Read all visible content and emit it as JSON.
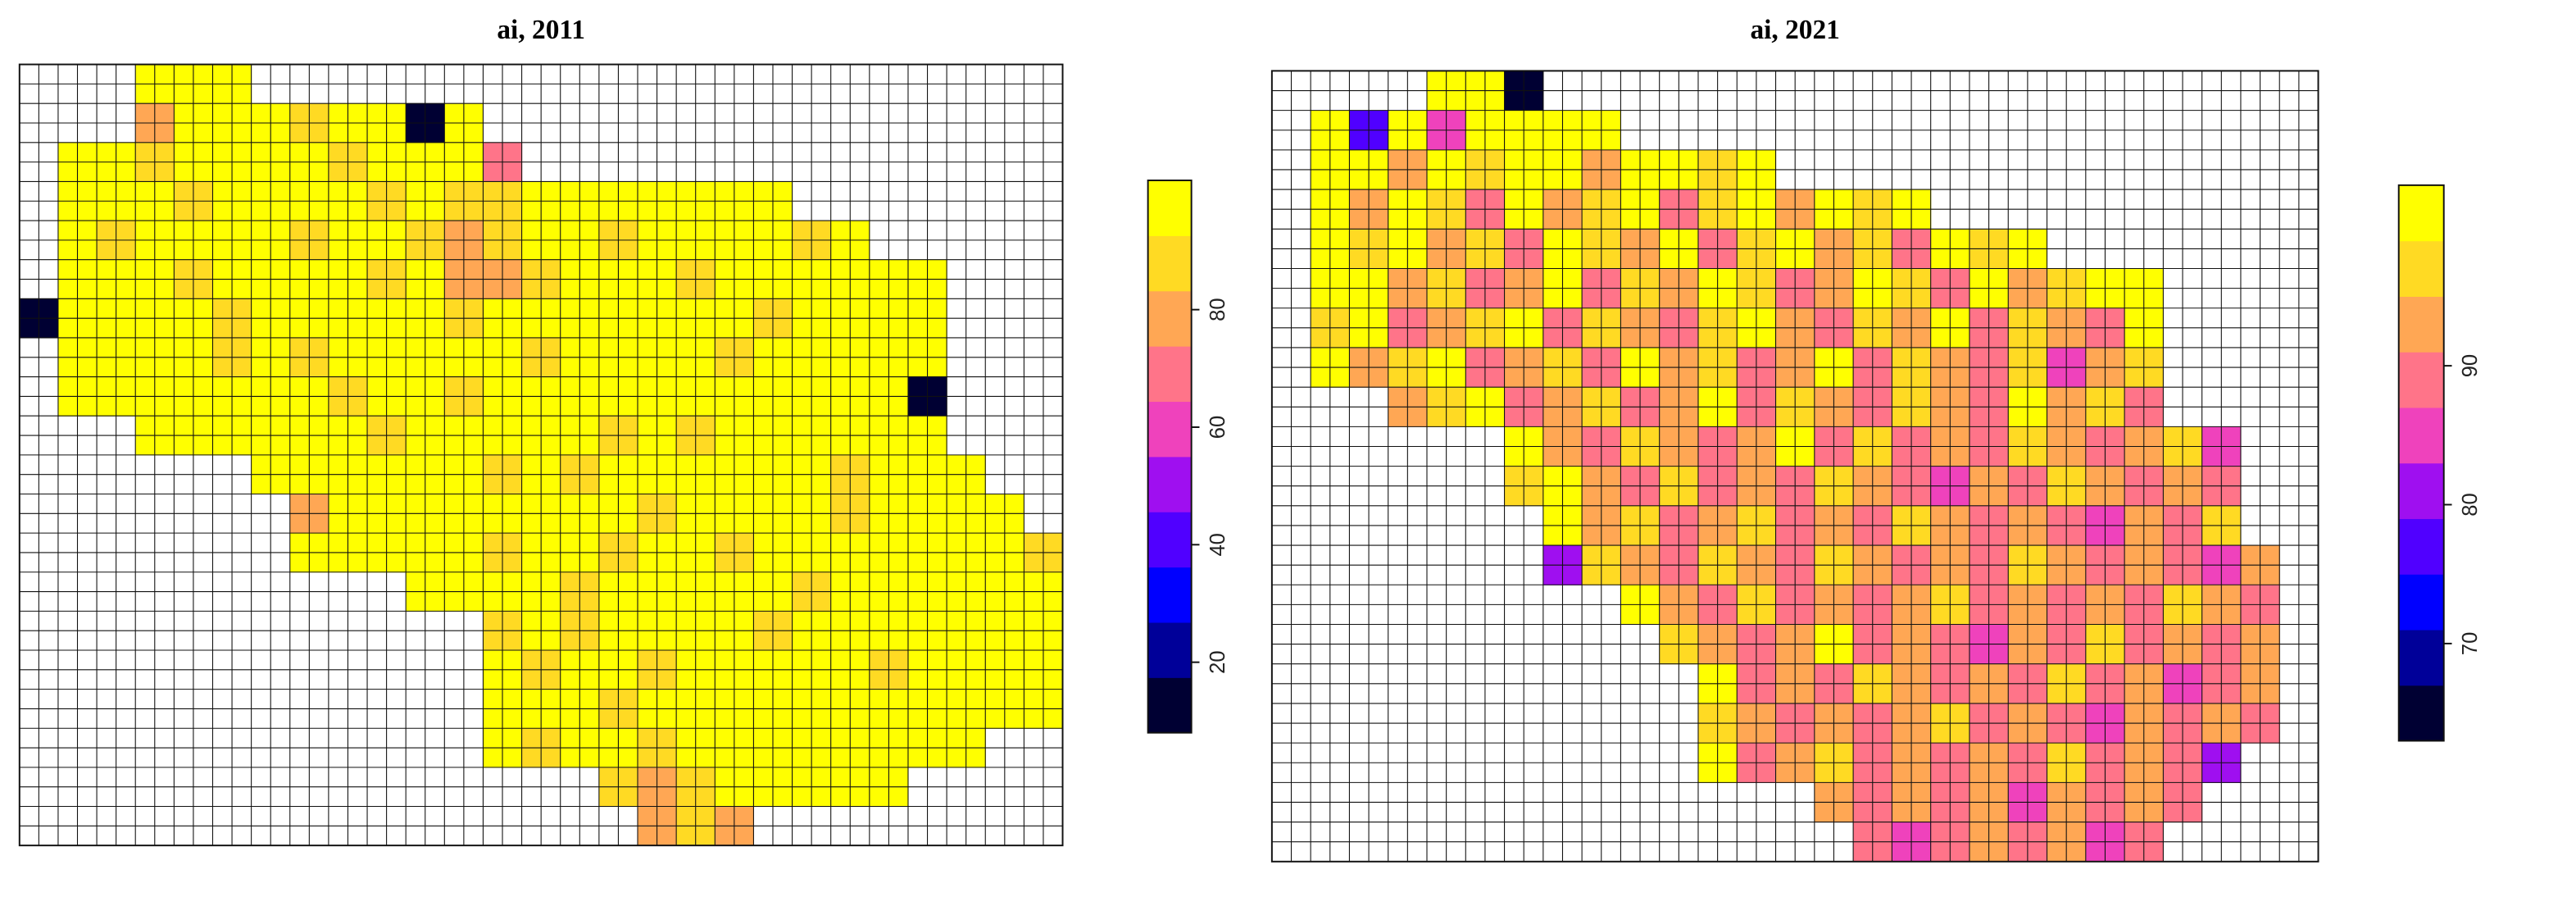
{
  "chart_data": [
    {
      "type": "raster",
      "title": "ai, 2011",
      "zlim": [
        8,
        102
      ],
      "zticks": [
        20,
        40,
        60,
        80
      ],
      "colors": [
        "#000033",
        "#000099",
        "#0000ff",
        "#5000ff",
        "#9f0ff0",
        "#ef42bc",
        "#ff7489",
        "#ffa754",
        "#ffda23",
        "#ffff00"
      ],
      "values": [
        [
          null,
          null,
          null,
          97,
          97,
          97,
          null,
          null,
          null,
          null,
          null,
          null,
          null,
          null,
          null,
          null,
          null,
          null,
          null,
          null,
          null,
          null,
          null,
          null,
          null,
          null,
          null
        ],
        [
          null,
          null,
          null,
          80,
          97,
          97,
          97,
          89,
          97,
          97,
          10,
          97,
          null,
          null,
          null,
          null,
          null,
          null,
          null,
          null,
          null,
          null,
          null,
          null,
          null,
          null,
          null
        ],
        [
          null,
          97,
          97,
          89,
          97,
          97,
          97,
          97,
          89,
          97,
          97,
          97,
          65,
          null,
          null,
          null,
          null,
          null,
          null,
          null,
          null,
          null,
          null,
          null,
          null,
          null,
          null
        ],
        [
          null,
          97,
          97,
          97,
          89,
          97,
          97,
          97,
          97,
          89,
          97,
          89,
          89,
          97,
          97,
          97,
          97,
          97,
          97,
          97,
          null,
          null,
          null,
          null,
          null,
          null,
          null
        ],
        [
          null,
          97,
          89,
          97,
          97,
          97,
          97,
          89,
          97,
          97,
          89,
          80,
          89,
          97,
          97,
          89,
          97,
          97,
          97,
          97,
          89,
          97,
          null,
          null,
          null,
          null,
          null
        ],
        [
          null,
          97,
          97,
          97,
          89,
          97,
          97,
          97,
          97,
          89,
          97,
          80,
          80,
          89,
          97,
          97,
          97,
          89,
          97,
          97,
          97,
          97,
          97,
          97,
          null,
          null,
          null
        ],
        [
          10,
          97,
          97,
          97,
          97,
          89,
          97,
          97,
          97,
          97,
          97,
          89,
          97,
          97,
          97,
          97,
          97,
          97,
          97,
          89,
          97,
          97,
          97,
          97,
          null,
          null,
          null
        ],
        [
          null,
          97,
          97,
          97,
          97,
          89,
          97,
          89,
          97,
          97,
          97,
          97,
          97,
          89,
          97,
          97,
          97,
          97,
          89,
          97,
          97,
          97,
          97,
          97,
          null,
          null,
          null
        ],
        [
          null,
          97,
          97,
          97,
          97,
          97,
          97,
          97,
          89,
          97,
          97,
          89,
          97,
          97,
          97,
          97,
          97,
          97,
          97,
          97,
          97,
          97,
          97,
          10,
          null,
          null,
          null
        ],
        [
          null,
          null,
          null,
          97,
          97,
          97,
          97,
          97,
          97,
          89,
          97,
          97,
          97,
          97,
          97,
          89,
          97,
          89,
          97,
          97,
          97,
          97,
          97,
          97,
          null,
          null,
          null
        ],
        [
          null,
          null,
          null,
          null,
          null,
          null,
          97,
          97,
          97,
          97,
          97,
          97,
          89,
          97,
          89,
          97,
          97,
          97,
          97,
          97,
          97,
          89,
          97,
          97,
          97,
          null,
          null
        ],
        [
          null,
          null,
          null,
          null,
          null,
          null,
          null,
          80,
          97,
          97,
          97,
          97,
          97,
          97,
          97,
          97,
          89,
          97,
          97,
          97,
          97,
          89,
          97,
          97,
          97,
          97,
          null
        ],
        [
          null,
          null,
          null,
          null,
          null,
          null,
          null,
          97,
          97,
          97,
          97,
          97,
          89,
          97,
          97,
          89,
          97,
          97,
          89,
          97,
          97,
          97,
          97,
          97,
          97,
          97,
          89
        ],
        [
          null,
          null,
          null,
          null,
          null,
          null,
          null,
          null,
          null,
          null,
          97,
          97,
          97,
          97,
          89,
          97,
          97,
          97,
          97,
          97,
          89,
          97,
          97,
          97,
          97,
          97,
          97
        ],
        [
          null,
          null,
          null,
          null,
          null,
          null,
          null,
          null,
          null,
          null,
          null,
          null,
          89,
          97,
          89,
          97,
          97,
          97,
          97,
          89,
          97,
          97,
          97,
          97,
          97,
          97,
          97
        ],
        [
          null,
          null,
          null,
          null,
          null,
          null,
          null,
          null,
          null,
          null,
          null,
          null,
          97,
          89,
          97,
          97,
          89,
          97,
          97,
          97,
          97,
          97,
          89,
          97,
          97,
          97,
          97
        ],
        [
          null,
          null,
          null,
          null,
          null,
          null,
          null,
          null,
          null,
          null,
          null,
          null,
          97,
          97,
          97,
          89,
          97,
          97,
          97,
          97,
          97,
          97,
          97,
          97,
          97,
          97,
          97
        ],
        [
          null,
          null,
          null,
          null,
          null,
          null,
          null,
          null,
          null,
          null,
          null,
          null,
          97,
          89,
          97,
          97,
          89,
          97,
          97,
          97,
          97,
          97,
          97,
          97,
          97,
          null,
          null
        ],
        [
          null,
          null,
          null,
          null,
          null,
          null,
          null,
          null,
          null,
          null,
          null,
          null,
          null,
          null,
          null,
          89,
          80,
          89,
          97,
          97,
          97,
          97,
          97,
          null,
          null,
          null,
          null
        ],
        [
          null,
          null,
          null,
          null,
          null,
          null,
          null,
          null,
          null,
          null,
          null,
          null,
          null,
          null,
          null,
          null,
          80,
          89,
          80,
          null,
          null,
          null,
          null,
          null,
          null,
          null,
          null
        ]
      ]
    },
    {
      "type": "raster",
      "title": "ai, 2021",
      "zlim": [
        63,
        103
      ],
      "zticks": [
        70,
        80,
        90
      ],
      "colors": [
        "#000033",
        "#000099",
        "#0000ff",
        "#5000ff",
        "#9f0ff0",
        "#ef42bc",
        "#ff7489",
        "#ffa754",
        "#ffda23",
        "#ffff00"
      ],
      "values": [
        [
          null,
          null,
          null,
          null,
          100,
          100,
          64,
          null,
          null,
          null,
          null,
          null,
          null,
          null,
          null,
          null,
          null,
          null,
          null,
          null,
          null,
          null,
          null,
          null,
          null,
          null,
          null
        ],
        [
          null,
          100,
          77,
          100,
          85,
          100,
          100,
          100,
          100,
          null,
          null,
          null,
          null,
          null,
          null,
          null,
          null,
          null,
          null,
          null,
          null,
          null,
          null,
          null,
          null,
          null,
          null
        ],
        [
          null,
          100,
          100,
          93,
          100,
          97,
          100,
          100,
          93,
          100,
          100,
          97,
          100,
          null,
          null,
          null,
          null,
          null,
          null,
          null,
          null,
          null,
          null,
          null,
          null,
          null,
          null
        ],
        [
          null,
          100,
          93,
          100,
          97,
          89,
          100,
          93,
          97,
          100,
          89,
          97,
          100,
          93,
          100,
          97,
          100,
          null,
          null,
          null,
          null,
          null,
          null,
          null,
          null,
          null,
          null
        ],
        [
          null,
          100,
          97,
          100,
          93,
          97,
          89,
          100,
          97,
          93,
          100,
          89,
          97,
          100,
          93,
          97,
          89,
          100,
          97,
          100,
          null,
          null,
          null,
          null,
          null,
          null,
          null
        ],
        [
          null,
          100,
          100,
          93,
          97,
          89,
          93,
          100,
          89,
          97,
          93,
          100,
          97,
          89,
          93,
          100,
          97,
          89,
          100,
          93,
          97,
          100,
          100,
          null,
          null,
          null,
          null
        ],
        [
          null,
          97,
          100,
          89,
          93,
          97,
          100,
          89,
          97,
          93,
          89,
          97,
          100,
          93,
          89,
          97,
          93,
          100,
          89,
          97,
          93,
          89,
          100,
          null,
          null,
          null,
          null
        ],
        [
          null,
          100,
          93,
          97,
          100,
          89,
          93,
          97,
          89,
          100,
          93,
          97,
          89,
          93,
          100,
          89,
          97,
          93,
          89,
          97,
          85,
          93,
          97,
          null,
          null,
          null,
          null
        ],
        [
          null,
          null,
          null,
          93,
          97,
          100,
          89,
          93,
          97,
          89,
          93,
          100,
          89,
          97,
          93,
          89,
          97,
          93,
          89,
          100,
          93,
          97,
          89,
          null,
          null,
          null,
          null
        ],
        [
          null,
          null,
          null,
          null,
          null,
          null,
          100,
          93,
          89,
          97,
          93,
          89,
          93,
          100,
          89,
          97,
          89,
          93,
          89,
          97,
          93,
          89,
          93,
          97,
          85,
          null,
          null
        ],
        [
          null,
          null,
          null,
          null,
          null,
          null,
          97,
          100,
          93,
          89,
          97,
          89,
          93,
          89,
          97,
          93,
          89,
          85,
          93,
          89,
          97,
          93,
          89,
          93,
          89,
          null,
          null
        ],
        [
          null,
          null,
          null,
          null,
          null,
          null,
          null,
          100,
          93,
          97,
          89,
          93,
          97,
          89,
          93,
          89,
          97,
          93,
          89,
          93,
          89,
          85,
          93,
          89,
          97,
          null,
          null
        ],
        [
          null,
          null,
          null,
          null,
          null,
          null,
          null,
          81,
          97,
          93,
          89,
          97,
          93,
          89,
          97,
          93,
          89,
          93,
          89,
          97,
          93,
          89,
          93,
          89,
          85,
          93,
          null
        ],
        [
          null,
          null,
          null,
          null,
          null,
          null,
          null,
          null,
          null,
          100,
          93,
          89,
          97,
          89,
          93,
          89,
          93,
          97,
          89,
          93,
          89,
          93,
          89,
          97,
          93,
          89,
          null
        ],
        [
          null,
          null,
          null,
          null,
          null,
          null,
          null,
          null,
          null,
          null,
          97,
          93,
          89,
          93,
          100,
          89,
          93,
          89,
          85,
          93,
          89,
          97,
          89,
          93,
          89,
          93,
          null
        ],
        [
          null,
          null,
          null,
          null,
          null,
          null,
          null,
          null,
          null,
          null,
          null,
          100,
          89,
          93,
          89,
          97,
          93,
          89,
          93,
          89,
          97,
          89,
          93,
          85,
          89,
          93,
          null
        ],
        [
          null,
          null,
          null,
          null,
          null,
          null,
          null,
          null,
          null,
          null,
          null,
          97,
          93,
          89,
          93,
          89,
          93,
          97,
          89,
          93,
          89,
          85,
          93,
          89,
          93,
          89,
          null
        ],
        [
          null,
          null,
          null,
          null,
          null,
          null,
          null,
          null,
          null,
          null,
          null,
          100,
          89,
          93,
          97,
          89,
          93,
          89,
          93,
          89,
          97,
          89,
          93,
          89,
          81,
          null,
          null
        ],
        [
          null,
          null,
          null,
          null,
          null,
          null,
          null,
          null,
          null,
          null,
          null,
          null,
          null,
          null,
          93,
          89,
          93,
          89,
          93,
          85,
          93,
          89,
          93,
          89,
          null,
          null,
          null
        ],
        [
          null,
          null,
          null,
          null,
          null,
          null,
          null,
          null,
          null,
          null,
          null,
          null,
          null,
          null,
          null,
          89,
          85,
          89,
          93,
          89,
          93,
          85,
          89,
          null,
          null,
          null,
          null
        ]
      ]
    }
  ]
}
